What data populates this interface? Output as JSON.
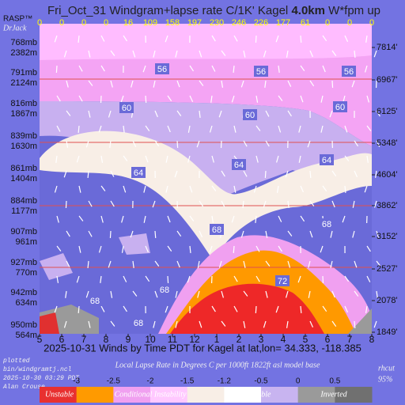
{
  "chart_data": {
    "type": "windgram",
    "title": {
      "prefix": "Fri_Oct_31 Windgram+lapse rate C/1K'  Kagel",
      "height": "4.0km",
      "suffix": "W*fpm up"
    },
    "brand": "RASP™",
    "author": "DrJack",
    "x_labels": [
      5,
      6,
      7,
      8,
      9,
      10,
      11,
      12,
      1,
      2,
      3,
      4,
      5,
      6,
      7,
      8
    ],
    "w_values": [
      0,
      0,
      0,
      0,
      16,
      109,
      158,
      197,
      230,
      246,
      226,
      177,
      61,
      0,
      0,
      0
    ],
    "pressure_levels": [
      {
        "mb": "768mb",
        "m": "2382m"
      },
      {
        "mb": "791mb",
        "m": "2124m"
      },
      {
        "mb": "816mb",
        "m": "1867m"
      },
      {
        "mb": "839mb",
        "m": "1630m"
      },
      {
        "mb": "861mb",
        "m": "1404m"
      },
      {
        "mb": "884mb",
        "m": "1177m"
      },
      {
        "mb": "907mb",
        "m": "961m"
      },
      {
        "mb": "927mb",
        "m": "770m"
      },
      {
        "mb": "942mb",
        "m": "634m"
      },
      {
        "mb": "950mb",
        "m": "564m"
      }
    ],
    "feet_levels": [
      "7814'",
      "6967'",
      "6125'",
      "5348'",
      "4604'",
      "3862'",
      "3152'",
      "2527'",
      "2078'",
      "1849'"
    ],
    "contour_labels": [
      56,
      56,
      56,
      60,
      60,
      60,
      64,
      64,
      64,
      68,
      68,
      68,
      68,
      72,
      68
    ],
    "subtitle": "2025-10-31 Winds by Time PDT for Kagel at lat,lon= 34.333, -118.385",
    "footer_left": [
      "plotted",
      "bin/windgramtj.ncl",
      "2025-10-30 03:29 PDT",
      "Alan Crouse"
    ],
    "legend_title": "Local Lapse Rate in Degrees C per 1000ft   1822ft asl model base",
    "rhcut": {
      "label": "rhcut",
      "value": "95%"
    },
    "legend_ticks": [
      -3,
      -2.5,
      -2,
      -1.5,
      -1.2,
      -0.5,
      0,
      0.5
    ],
    "legend_colors": [
      "#e83030",
      "#ff9a00",
      "#f0a0f0",
      "#ffc8ff",
      "#f8eee6",
      "#ffffff",
      "#c8b4f0",
      "#9a9a9a",
      "#707070"
    ],
    "legend_names": [
      "Unstable",
      "Conditional Instability",
      "Stable",
      "Inverted"
    ]
  }
}
